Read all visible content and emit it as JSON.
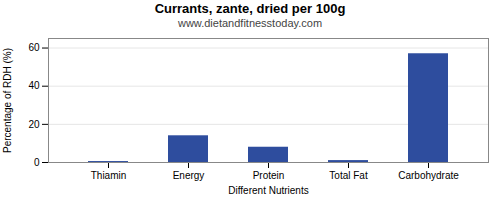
{
  "chart_data": {
    "type": "bar",
    "title": "Currants, zante, dried per 100g",
    "subtitle": "www.dietandfitnesstoday.com",
    "xlabel": "Different Nutrients",
    "ylabel": "Percentage of RDH (%)",
    "categories": [
      "Thiamin",
      "Energy",
      "Protein",
      "Total Fat",
      "Carbohydrate"
    ],
    "values": [
      0.5,
      14,
      8,
      1,
      57
    ],
    "color": "#2e4d9e",
    "ylim": [
      0,
      65
    ],
    "yticks": [
      0,
      20,
      40,
      60
    ],
    "grid": true
  }
}
